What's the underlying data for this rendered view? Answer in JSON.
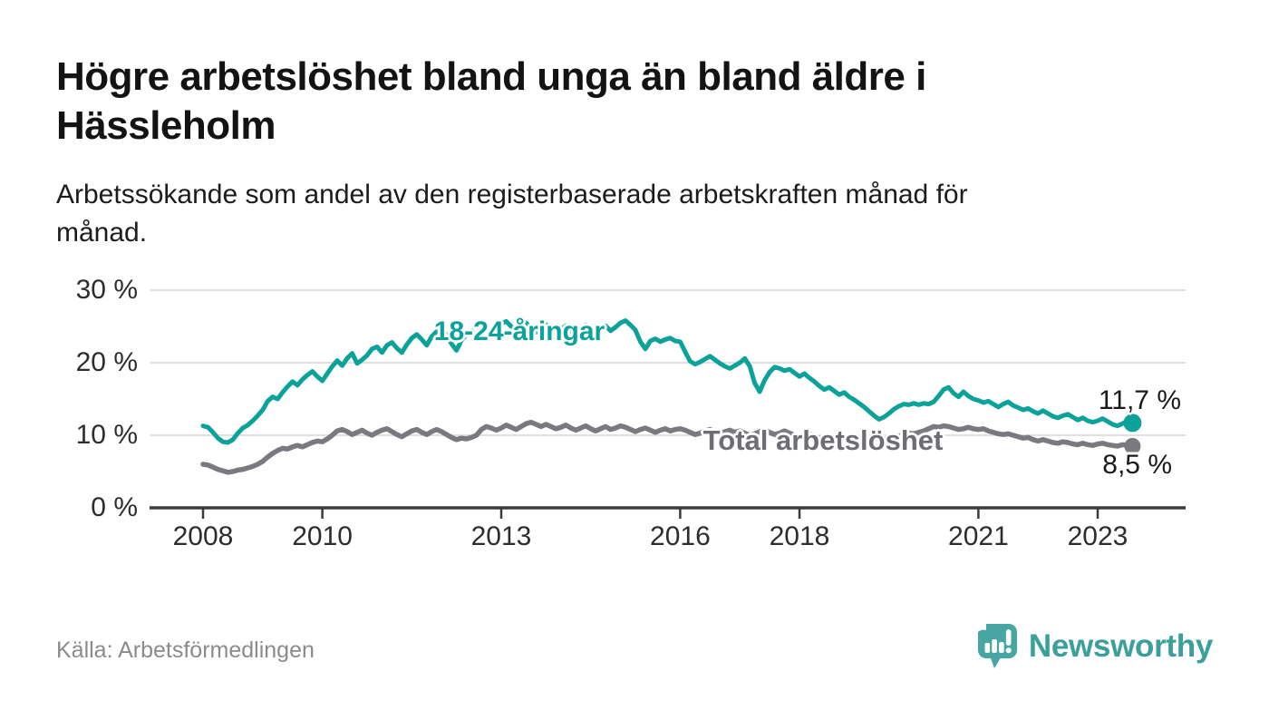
{
  "header": {
    "title_line1": "Högre arbetslöshet bland unga än bland äldre i",
    "title_line2": "Hässleholm",
    "subtitle_line1": "Arbetssökande som andel av den registerbaserade arbetskraften månad för",
    "subtitle_line2": "månad."
  },
  "footer": {
    "source": "Källa: Arbetsförmedlingen",
    "brand_name": "Newsworthy",
    "brand_color": "#3b9f9c",
    "brand_icon_color": "#47a6a2"
  },
  "chart_data": {
    "type": "line",
    "unit": "%",
    "x_start": 2008.0,
    "x_interval": "month",
    "x_end_label_period": "2023-08",
    "ylim": [
      0,
      31
    ],
    "grid": "horizontal",
    "legend_position": "inline-labels",
    "colors": {
      "grid": "#e0e0e0",
      "axis": "#3b3b3b",
      "tick_text": "#2d2d2d",
      "value_label_text": "#1a1a1a"
    },
    "y_axis_ticks": [
      {
        "value": 0,
        "label": "0 %"
      },
      {
        "value": 10,
        "label": "10 %"
      },
      {
        "value": 20,
        "label": "20 %"
      },
      {
        "value": 30,
        "label": "30 %"
      }
    ],
    "x_axis_ticks": [
      {
        "value": 2008,
        "label": "2008"
      },
      {
        "value": 2010,
        "label": "2010"
      },
      {
        "value": 2013,
        "label": "2013"
      },
      {
        "value": 2016,
        "label": "2016"
      },
      {
        "value": 2018,
        "label": "2018"
      },
      {
        "value": 2021,
        "label": "2021"
      },
      {
        "value": 2023,
        "label": "2023"
      }
    ],
    "series": [
      {
        "name": "Total arbetslöshet",
        "color": "#7a7980",
        "label_color": "#6e6d74",
        "line_width": 5.5,
        "end_dot_radius": 9,
        "end_value": 8.5,
        "end_label": "8,5 %",
        "values": [
          6.0,
          5.9,
          5.6,
          5.3,
          5.1,
          4.9,
          5.0,
          5.2,
          5.3,
          5.5,
          5.7,
          6.0,
          6.4,
          7.0,
          7.5,
          7.9,
          8.2,
          8.1,
          8.4,
          8.6,
          8.4,
          8.7,
          9.0,
          9.2,
          9.1,
          9.5,
          10.0,
          10.6,
          10.8,
          10.5,
          10.1,
          10.4,
          10.7,
          10.3,
          10.0,
          10.4,
          10.7,
          10.9,
          10.5,
          10.1,
          9.8,
          10.2,
          10.6,
          10.8,
          10.4,
          10.1,
          10.5,
          10.8,
          10.5,
          10.1,
          9.7,
          9.4,
          9.6,
          9.5,
          9.7,
          10.0,
          10.8,
          11.2,
          11.0,
          10.7,
          11.0,
          11.4,
          11.1,
          10.8,
          11.2,
          11.6,
          11.8,
          11.5,
          11.2,
          11.5,
          11.2,
          10.9,
          11.1,
          11.4,
          11.0,
          10.7,
          11.0,
          11.3,
          10.9,
          10.6,
          10.9,
          11.2,
          10.8,
          11.0,
          11.3,
          11.1,
          10.8,
          10.5,
          10.8,
          11.0,
          10.7,
          10.4,
          10.7,
          10.9,
          10.6,
          10.8,
          10.9,
          10.7,
          10.4,
          10.1,
          10.3,
          10.6,
          10.8,
          10.5,
          10.2,
          10.5,
          10.7,
          10.4,
          10.6,
          10.3,
          10.0,
          10.2,
          10.5,
          10.7,
          10.4,
          10.1,
          10.3,
          10.6,
          10.3,
          10.0,
          9.8,
          10.0,
          10.2,
          9.9,
          9.6,
          9.8,
          10.0,
          9.7,
          9.5,
          9.7,
          9.9,
          9.6,
          9.8,
          9.6,
          9.4,
          9.6,
          9.8,
          9.6,
          9.4,
          9.6,
          9.9,
          10.1,
          10.3,
          10.2,
          10.4,
          10.6,
          10.9,
          11.2,
          11.1,
          11.3,
          11.2,
          11.0,
          10.8,
          10.9,
          11.1,
          10.9,
          10.8,
          10.9,
          10.6,
          10.4,
          10.2,
          10.1,
          10.2,
          10.0,
          9.8,
          9.6,
          9.7,
          9.4,
          9.2,
          9.4,
          9.2,
          9.0,
          8.9,
          9.1,
          9.0,
          8.8,
          8.7,
          8.9,
          8.7,
          8.6,
          8.8,
          8.9,
          8.7,
          8.6,
          8.5,
          8.7,
          8.6,
          8.5
        ]
      },
      {
        "name": "18-24-åringar",
        "color": "#0ba29a",
        "label_color": "#0ba29a",
        "line_width": 5,
        "end_dot_radius": 10,
        "end_value": 11.7,
        "end_label": "11,7 %",
        "values": [
          11.3,
          11.1,
          10.4,
          9.6,
          9.1,
          9.0,
          9.4,
          10.3,
          11.0,
          11.4,
          12.0,
          12.7,
          13.5,
          14.7,
          15.3,
          15.0,
          15.9,
          16.7,
          17.4,
          16.9,
          17.7,
          18.3,
          18.8,
          18.1,
          17.5,
          18.5,
          19.5,
          20.3,
          19.6,
          20.6,
          21.3,
          19.9,
          20.4,
          21.0,
          21.9,
          22.2,
          21.4,
          22.4,
          22.8,
          22.0,
          21.4,
          22.5,
          23.4,
          23.9,
          23.2,
          22.4,
          23.6,
          24.3,
          24.7,
          23.8,
          22.6,
          21.7,
          23.1,
          23.9,
          24.4,
          23.6,
          24.5,
          24.9,
          24.2,
          25.0,
          25.4,
          25.7,
          25.0,
          24.4,
          25.0,
          25.5,
          24.7,
          24.2,
          24.9,
          25.3,
          24.6,
          24.1,
          24.6,
          25.1,
          24.4,
          23.9,
          24.7,
          25.2,
          24.5,
          24.0,
          24.7,
          25.1,
          24.4,
          24.9,
          25.5,
          25.8,
          25.2,
          24.5,
          22.9,
          21.9,
          23.0,
          23.3,
          22.9,
          23.2,
          23.4,
          23.0,
          22.9,
          21.5,
          20.2,
          19.8,
          20.1,
          20.5,
          20.9,
          20.4,
          19.9,
          19.5,
          19.2,
          19.6,
          20.0,
          20.6,
          19.5,
          17.2,
          16.0,
          17.6,
          18.7,
          19.4,
          19.2,
          18.9,
          19.1,
          18.6,
          18.1,
          18.5,
          17.9,
          17.4,
          16.8,
          16.3,
          16.6,
          16.1,
          15.6,
          15.9,
          15.3,
          14.9,
          14.4,
          13.9,
          13.3,
          12.7,
          12.2,
          12.5,
          13.0,
          13.6,
          14.0,
          14.3,
          14.2,
          14.4,
          14.2,
          14.4,
          14.3,
          14.6,
          15.4,
          16.3,
          16.6,
          15.8,
          15.3,
          16.0,
          15.4,
          15.0,
          14.8,
          14.5,
          14.7,
          14.3,
          13.9,
          14.3,
          14.6,
          14.1,
          13.8,
          13.5,
          13.7,
          13.3,
          13.0,
          13.4,
          13.0,
          12.6,
          12.4,
          12.7,
          12.9,
          12.5,
          12.1,
          12.4,
          12.0,
          11.8,
          12.0,
          12.3,
          11.9,
          11.5,
          11.3,
          11.6,
          12.0,
          11.7
        ]
      }
    ]
  }
}
